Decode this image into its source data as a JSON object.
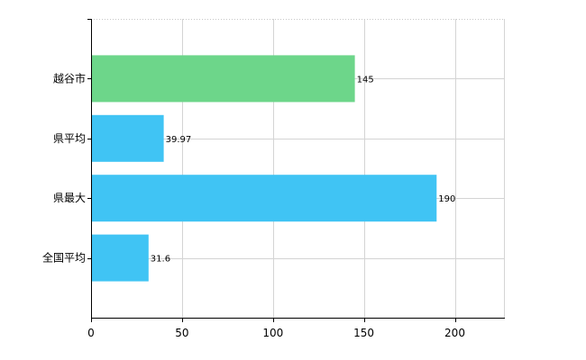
{
  "chart_data": {
    "type": "bar",
    "orientation": "horizontal",
    "categories": [
      "越谷市",
      "県平均",
      "県最大",
      "全国平均"
    ],
    "values": [
      145,
      39.97,
      190,
      31.6
    ],
    "value_labels": [
      "145",
      "39.97",
      "190",
      "31.6"
    ],
    "bar_colors": [
      "#6dd68a",
      "#40c4f4",
      "#40c4f4",
      "#40c4f4"
    ],
    "xlim": [
      0,
      227
    ],
    "xticks": [
      0,
      50,
      100,
      150,
      200
    ],
    "xtick_labels": [
      "0",
      "50",
      "100",
      "150",
      "200"
    ],
    "grid": true,
    "legend": "none"
  }
}
